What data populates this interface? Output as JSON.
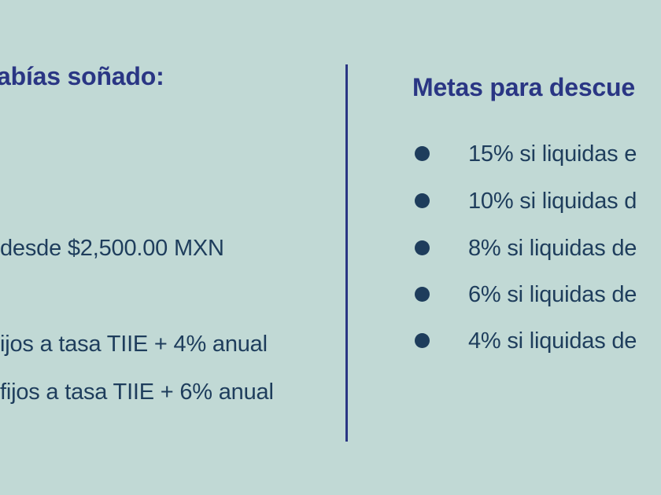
{
  "left_panel": {
    "heading": "abías soñado:",
    "lines": [
      "desde $2,500.00 MXN",
      "ijos a tasa TIIE + 4% anual",
      "fijos a tasa TIIE + 6% anual"
    ]
  },
  "right_panel": {
    "heading": "Metas para descue",
    "goals": [
      "15% si liquidas e",
      "10% si liquidas d",
      "8% si liquidas de",
      "6% si liquidas de",
      "4% si liquidas de"
    ]
  },
  "colors": {
    "background": "#c1d9d5",
    "heading": "#2a3684",
    "body_text": "#1e3d5c",
    "divider": "#2a3684"
  }
}
